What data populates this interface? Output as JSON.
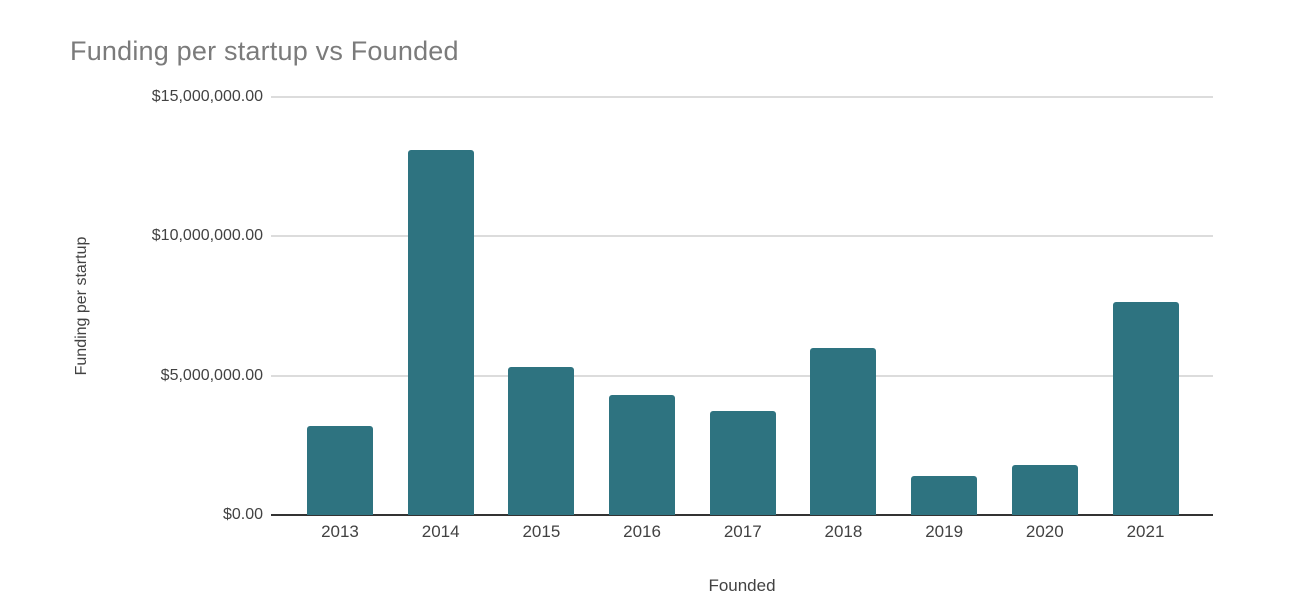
{
  "chart_data": {
    "type": "bar",
    "title": "Funding per startup vs Founded",
    "xlabel": "Founded",
    "ylabel": "Funding per startup",
    "categories": [
      "2013",
      "2014",
      "2015",
      "2016",
      "2017",
      "2018",
      "2019",
      "2020",
      "2021"
    ],
    "values": [
      3200000,
      13100000,
      5300000,
      4300000,
      3750000,
      6000000,
      1400000,
      1800000,
      7650000
    ],
    "ylim": [
      0,
      15000000
    ],
    "y_ticks": [
      {
        "value": 0,
        "label": "$0.00"
      },
      {
        "value": 5000000,
        "label": "$5,000,000.00"
      },
      {
        "value": 10000000,
        "label": "$10,000,000.00"
      },
      {
        "value": 15000000,
        "label": "$15,000,000.00"
      }
    ],
    "grid": true,
    "legend": "none",
    "colors": {
      "bar": "#2e7380",
      "title_text": "#7b7b7b",
      "axis_text": "#424242",
      "gridline": "#dcdcdc",
      "axis_line": "#333333",
      "background": "#ffffff"
    }
  }
}
